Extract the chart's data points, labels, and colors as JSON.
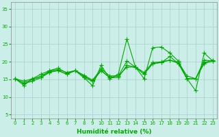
{
  "xlabel": "Humidité relative (%)",
  "ylabel": "",
  "background_color": "#cceee8",
  "grid_color": "#aacccc",
  "line_color": "#00aa00",
  "xlim": [
    -0.5,
    23.5
  ],
  "ylim": [
    4,
    37
  ],
  "yticks": [
    5,
    10,
    15,
    20,
    25,
    30,
    35
  ],
  "xticks": [
    0,
    1,
    2,
    3,
    4,
    5,
    6,
    7,
    8,
    9,
    10,
    11,
    12,
    13,
    14,
    15,
    16,
    17,
    18,
    19,
    20,
    21,
    22,
    23
  ],
  "series": [
    [
      15.2,
      13.3,
      15.2,
      15.5,
      17.5,
      18.2,
      16.8,
      17.5,
      15.5,
      13.2,
      19.0,
      15.2,
      16.5,
      26.5,
      18.5,
      15.2,
      24.0,
      24.2,
      22.5,
      20.2,
      15.2,
      11.8,
      22.5,
      20.2
    ],
    [
      15.2,
      13.8,
      14.5,
      15.5,
      17.0,
      17.5,
      16.5,
      17.5,
      15.5,
      14.5,
      17.5,
      15.5,
      16.0,
      20.2,
      18.5,
      16.5,
      19.5,
      19.8,
      21.5,
      19.5,
      15.2,
      15.2,
      20.5,
      20.2
    ],
    [
      15.2,
      14.0,
      15.0,
      16.0,
      17.2,
      17.5,
      16.5,
      17.5,
      16.0,
      14.5,
      17.5,
      15.5,
      15.5,
      19.0,
      18.5,
      16.5,
      19.5,
      19.8,
      20.5,
      19.5,
      15.2,
      15.2,
      19.5,
      20.2
    ],
    [
      15.2,
      14.5,
      15.2,
      16.5,
      17.5,
      17.8,
      17.0,
      17.5,
      16.2,
      14.8,
      18.0,
      16.0,
      16.0,
      18.5,
      18.5,
      17.0,
      19.8,
      20.0,
      20.5,
      19.8,
      16.0,
      15.2,
      19.8,
      20.5
    ]
  ],
  "marker": "+",
  "marker_size": 4,
  "linewidth": 0.8,
  "tick_fontsize": 5.0,
  "xlabel_fontsize": 6.5
}
